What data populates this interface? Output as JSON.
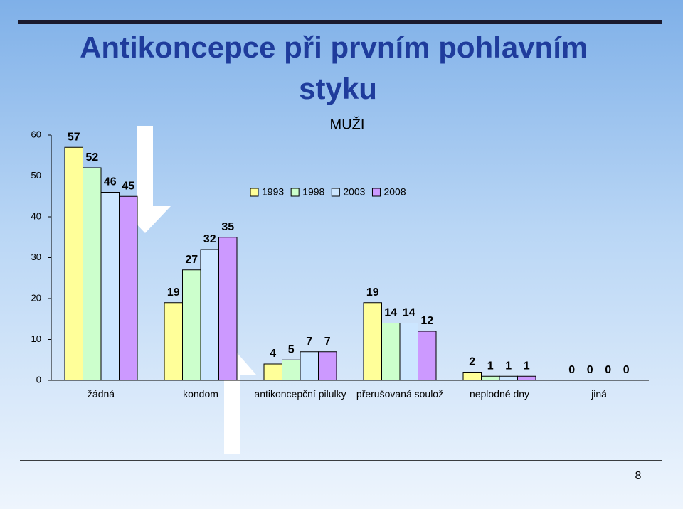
{
  "chart_data": {
    "type": "bar",
    "title": "Antikoncepce při prvním pohlavním styku",
    "subtitle": "MUŽI",
    "categories": [
      "žádná",
      "kondom",
      "antikoncepční pilulky",
      "přerušovaná soulož",
      "neplodné dny",
      "jiná"
    ],
    "series": [
      {
        "name": "1993",
        "color": "#ffff99",
        "values": [
          57,
          19,
          4,
          19,
          2,
          0
        ]
      },
      {
        "name": "1998",
        "color": "#ccffcc",
        "values": [
          52,
          27,
          5,
          14,
          1,
          0
        ]
      },
      {
        "name": "2003",
        "color": "#cce6ff",
        "values": [
          46,
          32,
          7,
          14,
          1,
          0
        ]
      },
      {
        "name": "2008",
        "color": "#cc99ff",
        "values": [
          45,
          35,
          7,
          12,
          1,
          0
        ]
      }
    ],
    "ylim": [
      0,
      60
    ],
    "yticks": [
      0,
      10,
      20,
      30,
      40,
      50,
      60
    ],
    "grid": false,
    "legend": "top"
  },
  "slide_number": "8"
}
